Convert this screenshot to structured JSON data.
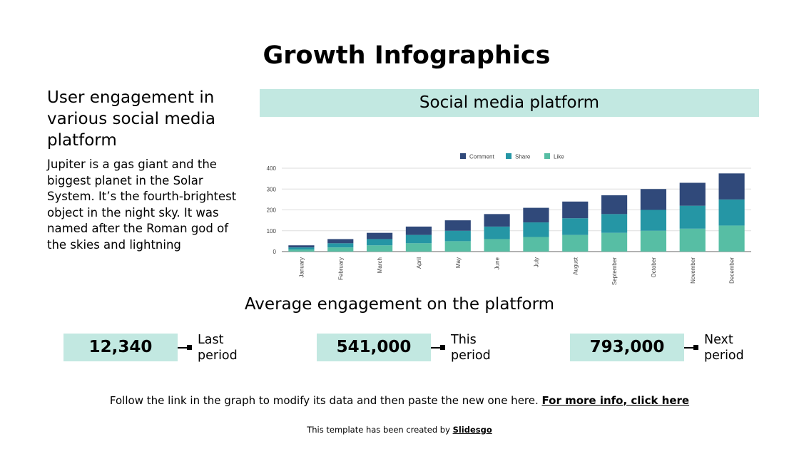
{
  "title": "Growth Infographics",
  "subtitle": "User engagement in various social media platform",
  "body": "Jupiter is a gas giant and the biggest planet in the Solar System. It’s the fourth-brightest object in the night sky. It was named after the Roman god of the skies and lightning",
  "banner": "Social media platform",
  "average_heading": "Average engagement on the platform",
  "periods": [
    {
      "value": "12,340",
      "label": "Last period"
    },
    {
      "value": "541,000",
      "label": "This period"
    },
    {
      "value": "793,000",
      "label": "Next period"
    }
  ],
  "footer": {
    "text": "Follow the link in the graph to modify its data and then paste the new one here. ",
    "link": "For more info, click here"
  },
  "credit": {
    "text": "This template has been created by ",
    "link": "Slidesgo"
  },
  "chart_data": {
    "type": "bar",
    "stacked": true,
    "categories": [
      "January",
      "February",
      "March",
      "April",
      "May",
      "June",
      "July",
      "August",
      "September",
      "October",
      "November",
      "December"
    ],
    "series": [
      {
        "name": "Like",
        "color": "#57bea4",
        "values": [
          10,
          20,
          30,
          40,
          50,
          60,
          70,
          80,
          90,
          100,
          110,
          125
        ]
      },
      {
        "name": "Share",
        "color": "#2596a5",
        "values": [
          10,
          20,
          30,
          40,
          50,
          60,
          70,
          80,
          90,
          100,
          110,
          125
        ]
      },
      {
        "name": "Comment",
        "color": "#30497a",
        "values": [
          10,
          20,
          30,
          40,
          50,
          60,
          70,
          80,
          90,
          100,
          110,
          125
        ]
      }
    ],
    "legend_order": [
      "Comment",
      "Share",
      "Like"
    ],
    "yticks": [
      0,
      100,
      200,
      300,
      400
    ],
    "ylim": [
      0,
      400
    ],
    "grid": true,
    "legend": "top"
  }
}
